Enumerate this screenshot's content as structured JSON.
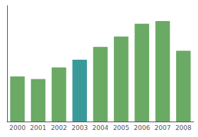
{
  "chart_data": {
    "type": "bar",
    "categories": [
      "2000",
      "2001",
      "2002",
      "2003",
      "2004",
      "2005",
      "2006",
      "2007",
      "2008"
    ],
    "values": [
      35,
      33,
      42,
      48,
      58,
      66,
      76,
      78,
      55
    ],
    "colors": [
      "#6aaa64",
      "#6aaa64",
      "#6aaa64",
      "#3a9a9a",
      "#6aaa64",
      "#6aaa64",
      "#6aaa64",
      "#6aaa64",
      "#6aaa64"
    ],
    "ylim": [
      0,
      90
    ],
    "grid": false,
    "tick_labels": "x"
  }
}
